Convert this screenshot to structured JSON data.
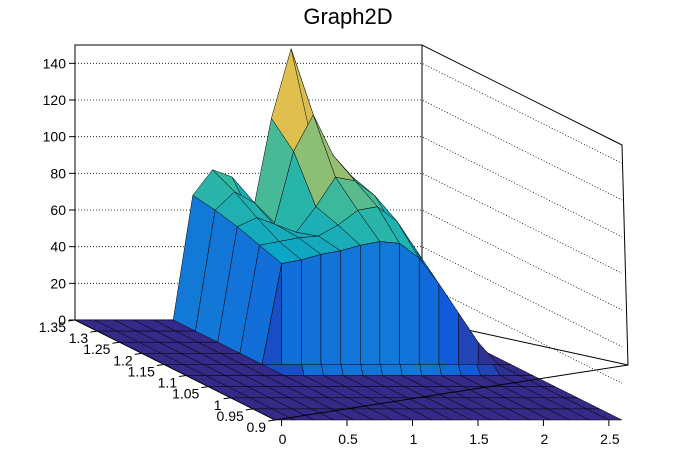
{
  "chart_data": {
    "type": "surface3d",
    "title": "Graph2D",
    "xlabel": "",
    "ylabel": "",
    "zlabel": "",
    "xlim": [
      -0.05,
      2.6
    ],
    "ylim": [
      0.9,
      1.35
    ],
    "zlim": [
      0,
      150
    ],
    "x_ticks": [
      "0",
      "0.5",
      "1",
      "1.5",
      "2",
      "2.5"
    ],
    "y_ticks": [
      "0.9",
      "0.95",
      "1",
      "1.05",
      "1.1",
      "1.15",
      "1.2",
      "1.25",
      "1.3",
      "1.35"
    ],
    "z_ticks": [
      "0",
      "20",
      "40",
      "60",
      "80",
      "100",
      "120",
      "140"
    ],
    "grid": true,
    "colormap": [
      "#352a87",
      "#0f5cdd",
      "#1481d6",
      "#06a4ca",
      "#2eb7a4",
      "#87bf77",
      "#d1bb59",
      "#fec832",
      "#f9fb0e"
    ],
    "surface_x": [
      -0.05,
      0.1,
      0.25,
      0.4,
      0.55,
      0.7,
      0.85,
      1.0,
      1.15,
      1.3,
      1.45,
      1.6,
      1.75,
      1.9,
      2.05,
      2.2,
      2.35,
      2.5,
      2.6
    ],
    "surface_y": [
      0.9,
      0.95,
      1.0,
      1.05,
      1.1,
      1.15,
      1.2,
      1.25,
      1.3,
      1.35
    ],
    "surface_z": [
      [
        0,
        0,
        0,
        0,
        0,
        0,
        0,
        0,
        0,
        0,
        0,
        0,
        0,
        0,
        0,
        0,
        0,
        0,
        0
      ],
      [
        0,
        0,
        0,
        0,
        0,
        0,
        0,
        0,
        0,
        0,
        0,
        0,
        0,
        0,
        0,
        0,
        0,
        0,
        0
      ],
      [
        0,
        0,
        0,
        0,
        0,
        0,
        0,
        0,
        0,
        0,
        0,
        0,
        0,
        0,
        0,
        0,
        0,
        0,
        0
      ],
      [
        0,
        0,
        0,
        0,
        0,
        0,
        0,
        0,
        0,
        0,
        0,
        0,
        0,
        0,
        0,
        0,
        0,
        0,
        0
      ],
      [
        0,
        0,
        0,
        0,
        0,
        0,
        0,
        0,
        0,
        0,
        0,
        0,
        0,
        0,
        0,
        0,
        0,
        0,
        0
      ],
      [
        0,
        0,
        0,
        0,
        0,
        0,
        55,
        57,
        60,
        62,
        65,
        67,
        66,
        58,
        44,
        28,
        12,
        0,
        0
      ],
      [
        0,
        0,
        0,
        0,
        0,
        0,
        59,
        61,
        63,
        64,
        70,
        78,
        80,
        72,
        56,
        36,
        16,
        0,
        0
      ],
      [
        0,
        0,
        0,
        0,
        0,
        0,
        63,
        68,
        64,
        60,
        74,
        90,
        88,
        80,
        62,
        42,
        20,
        0,
        0
      ],
      [
        0,
        0,
        0,
        0,
        0,
        0,
        66,
        76,
        70,
        58,
        98,
        118,
        96,
        84,
        66,
        46,
        24,
        0,
        0
      ],
      [
        0,
        0,
        0,
        0,
        0,
        0,
        68,
        82,
        78,
        56,
        110,
        148,
        100,
        88,
        70,
        50,
        28,
        0,
        0
      ]
    ]
  }
}
